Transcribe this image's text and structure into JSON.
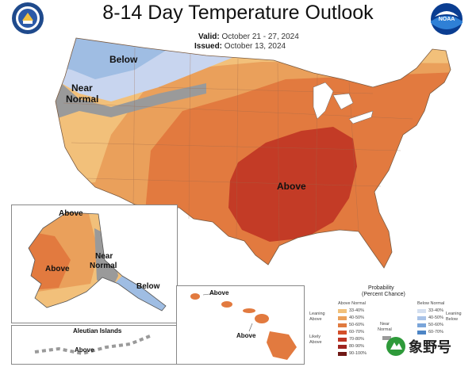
{
  "title": "8-14 Day Temperature Outlook",
  "valid_label": "Valid:",
  "valid_dates": "October 21 - 27, 2024",
  "issued_label": "Issued:",
  "issued_date": "October 13, 2024",
  "map_labels": {
    "below": "Below",
    "near_normal_line1": "Near",
    "near_normal_line2": "Normal",
    "above_main": "Above",
    "ak_above_top": "Above",
    "ak_above_west": "Above",
    "ak_near_line1": "Near",
    "ak_near_line2": "Normal",
    "ak_below": "Below",
    "aleutian": "Aleutian Islands",
    "aleutian_above": "Above",
    "hi_above_1": "Above",
    "hi_above_2": "Above"
  },
  "legend": {
    "title_line1": "Probability",
    "title_line2": "(Percent Chance)",
    "above_header": "Above Normal",
    "below_header": "Below Normal",
    "leaning_above_1": "Leaning",
    "leaning_above_2": "Above",
    "likely_above_1": "Likely",
    "likely_above_2": "Above",
    "near_normal_1": "Near",
    "near_normal_2": "Normal",
    "leaning_below_1": "Leaning",
    "leaning_below_2": "Below",
    "above_ranges": [
      "33-40%",
      "40-50%",
      "50-60%",
      "60-70%",
      "70-80%",
      "80-90%",
      "90-100%"
    ],
    "below_ranges": [
      "33-40%",
      "40-50%",
      "50-60%",
      "60-70%"
    ],
    "above_colors": [
      "#f1c07a",
      "#eba05a",
      "#e07a3f",
      "#d44f2a",
      "#bd3424",
      "#9e2420",
      "#6f1815"
    ],
    "below_colors": [
      "#d4dff0",
      "#a9c3e8",
      "#7aa5d9",
      "#4d85c5"
    ]
  },
  "colors": {
    "below_light": "#c8d5ef",
    "below": "#9fbde3",
    "near_normal": "#9a9a9a",
    "above_33": "#f2c07a",
    "above_40": "#eaa05b",
    "above_50": "#e27a3f",
    "above_60": "#c33b26",
    "water": "#ffffff"
  },
  "watermark": "象野号"
}
